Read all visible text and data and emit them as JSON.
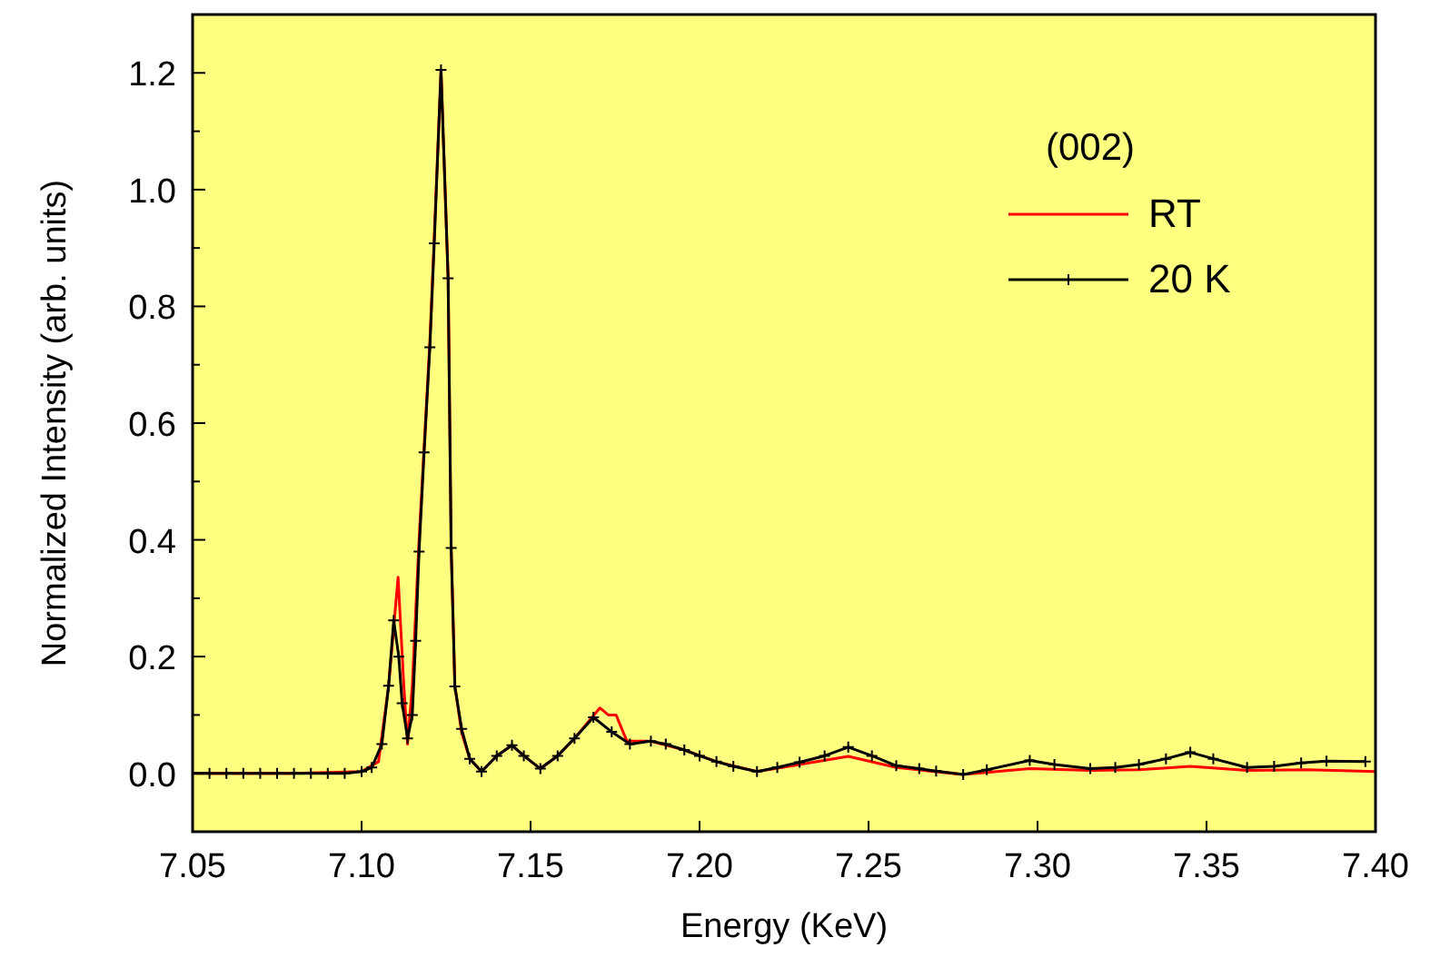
{
  "chart_data": {
    "type": "line",
    "xlabel": "Energy (KeV)",
    "ylabel": "Normalized Intensity (arb. units)",
    "legend_title": "(002)",
    "legend": "top right",
    "grid": false,
    "xlim": [
      7.05,
      7.4
    ],
    "ylim": [
      -0.1,
      1.3
    ],
    "xticks": [
      7.05,
      {
        "value": 7.1,
        "label": "7.10"
      },
      7.15,
      {
        "value": 7.2,
        "label": "7.20"
      },
      7.25,
      {
        "value": 7.3,
        "label": "7.30"
      },
      7.35,
      {
        "value": 7.4,
        "label": "7.40"
      }
    ],
    "yticks": [
      {
        "value": 0,
        "label": "0.0"
      },
      {
        "value": 0.1,
        "label": null
      },
      0.2,
      {
        "value": 0.3,
        "label": null
      },
      0.4,
      {
        "value": 0.5,
        "label": null
      },
      0.6,
      {
        "value": 0.7,
        "label": null
      },
      0.8,
      {
        "value": 0.9,
        "label": null
      },
      {
        "value": 1,
        "label": "1.0"
      },
      {
        "value": 1.1,
        "label": null
      },
      1.2
    ],
    "series": [
      {
        "name": "RT",
        "color": "#ff0000",
        "marker": "none",
        "x": [
          7.05,
          7.08,
          7.1,
          7.105,
          7.108,
          7.1108,
          7.1125,
          7.1136,
          7.115,
          7.117,
          7.1202,
          7.1215,
          7.1235,
          7.1256,
          7.1265,
          7.1276,
          7.1296,
          7.132,
          7.1355,
          7.14,
          7.1445,
          7.148,
          7.1529,
          7.158,
          7.163,
          7.1705,
          7.173,
          7.1753,
          7.1785,
          7.1856,
          7.1955,
          7.205,
          7.217,
          7.2296,
          7.244,
          7.2582,
          7.278,
          7.2977,
          7.3156,
          7.33,
          7.3452,
          7.362,
          7.38,
          7.4
        ],
        "values": [
          0,
          0,
          0.003,
          0.02,
          0.15,
          0.336,
          0.15,
          0.05,
          0.15,
          0.4,
          0.74,
          0.92,
          1.205,
          0.85,
          0.39,
          0.15,
          0.07,
          0.025,
          0.003,
          0.03,
          0.048,
          0.03,
          0.008,
          0.03,
          0.06,
          0.112,
          0.1,
          0.1,
          0.055,
          0.055,
          0.04,
          0.02,
          0.003,
          0.015,
          0.029,
          0.01,
          -0.002,
          0.008,
          0.005,
          0.006,
          0.012,
          0.005,
          0.006,
          0.003
        ]
      },
      {
        "name": "20 K",
        "color": "#000000",
        "marker": "cross",
        "x": [
          7.05,
          7.055,
          7.06,
          7.065,
          7.07,
          7.075,
          7.08,
          7.085,
          7.09,
          7.095,
          7.1,
          7.103,
          7.106,
          7.108,
          7.1095,
          7.111,
          7.112,
          7.1136,
          7.115,
          7.116,
          7.117,
          7.1185,
          7.1202,
          7.1215,
          7.1235,
          7.1256,
          7.1265,
          7.1276,
          7.1296,
          7.132,
          7.1355,
          7.14,
          7.1445,
          7.148,
          7.1529,
          7.158,
          7.163,
          7.1686,
          7.174,
          7.1794,
          7.1856,
          7.19,
          7.1955,
          7.2,
          7.205,
          7.21,
          7.217,
          7.223,
          7.2296,
          7.237,
          7.244,
          7.251,
          7.2582,
          7.265,
          7.27,
          7.278,
          7.285,
          7.2977,
          7.305,
          7.3156,
          7.323,
          7.33,
          7.338,
          7.3452,
          7.352,
          7.362,
          7.37,
          7.378,
          7.3855,
          7.397
        ],
        "values": [
          0,
          0,
          0,
          0,
          0,
          0,
          0,
          0,
          0,
          0,
          0.003,
          0.01,
          0.05,
          0.15,
          0.262,
          0.2,
          0.12,
          0.06,
          0.1,
          0.227,
          0.38,
          0.55,
          0.73,
          0.908,
          1.205,
          0.848,
          0.386,
          0.149,
          0.076,
          0.025,
          0.003,
          0.03,
          0.048,
          0.03,
          0.008,
          0.03,
          0.06,
          0.096,
          0.071,
          0.05,
          0.055,
          0.05,
          0.04,
          0.03,
          0.02,
          0.012,
          0.003,
          0.01,
          0.019,
          0.03,
          0.045,
          0.03,
          0.013,
          0.008,
          0.004,
          -0.002,
          0.006,
          0.022,
          0.015,
          0.008,
          0.01,
          0.015,
          0.025,
          0.036,
          0.025,
          0.01,
          0.012,
          0.018,
          0.021,
          0.02
        ]
      }
    ]
  }
}
